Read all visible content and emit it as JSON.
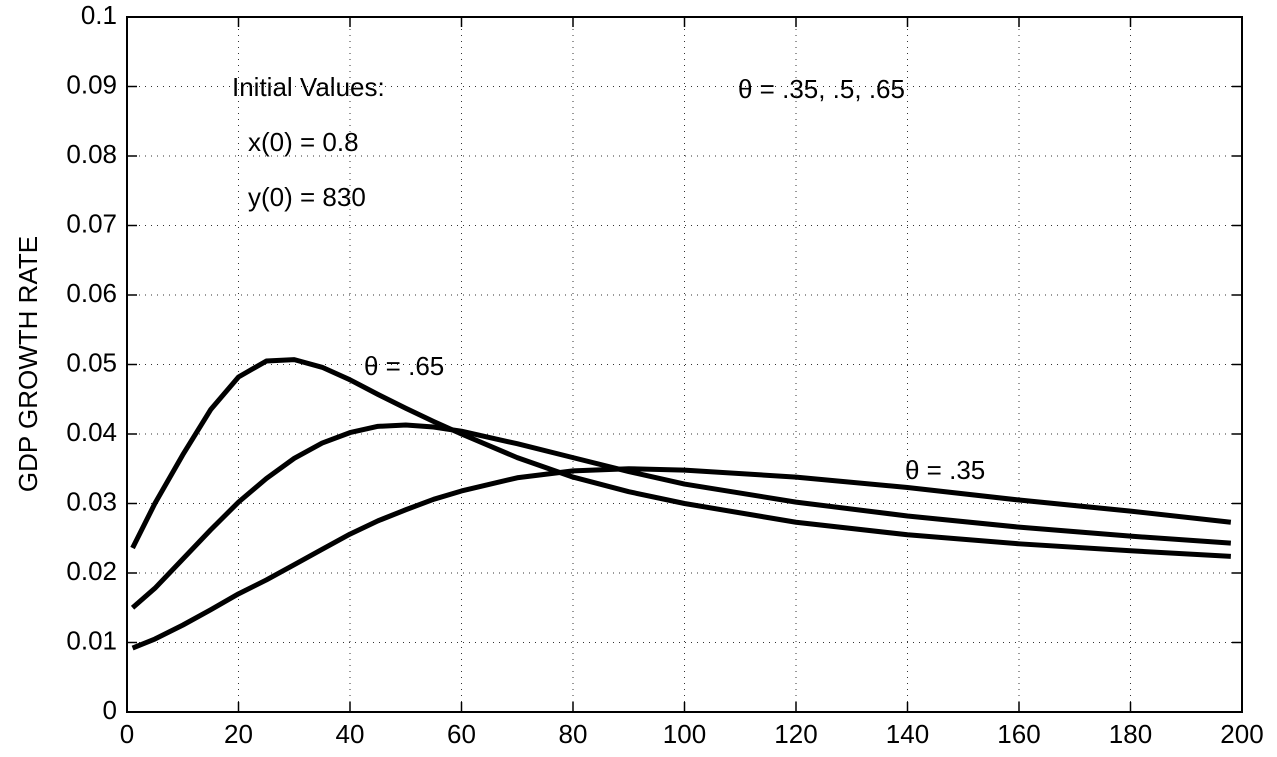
{
  "chart_data": {
    "type": "line",
    "y_label": "GDP GROWTH RATE",
    "annotations": [
      "Initial Values:",
      "x(0) = 0.8",
      "y(0) = 830",
      "θ = .35, .5, .65",
      "θ = .65",
      "θ = .35"
    ],
    "x": [
      1,
      5,
      10,
      15,
      20,
      25,
      30,
      35,
      40,
      45,
      50,
      55,
      60,
      70,
      80,
      90,
      100,
      120,
      140,
      160,
      180,
      198
    ],
    "series": [
      {
        "color": "#000000",
        "values": [
          0.0236,
          0.03,
          0.037,
          0.0435,
          0.0482,
          0.0505,
          0.0507,
          0.0496,
          0.0478,
          0.0457,
          0.0437,
          0.0418,
          0.04,
          0.0366,
          0.0338,
          0.0317,
          0.03,
          0.0273,
          0.0255,
          0.0242,
          0.0232,
          0.0224
        ]
      },
      {
        "color": "#000000",
        "values": [
          0.015,
          0.0178,
          0.022,
          0.0262,
          0.0302,
          0.0336,
          0.0365,
          0.0387,
          0.0402,
          0.0411,
          0.0413,
          0.041,
          0.0404,
          0.0386,
          0.0366,
          0.0346,
          0.0328,
          0.0302,
          0.0282,
          0.0266,
          0.0253,
          0.0243
        ]
      },
      {
        "color": "#000000",
        "values": [
          0.0092,
          0.0105,
          0.0125,
          0.0147,
          0.017,
          0.019,
          0.0212,
          0.0234,
          0.0256,
          0.0275,
          0.0291,
          0.0306,
          0.0318,
          0.0337,
          0.0347,
          0.035,
          0.0348,
          0.0338,
          0.0323,
          0.0305,
          0.0289,
          0.0273
        ]
      }
    ],
    "xlim": [
      0,
      200
    ],
    "xticks": [
      0,
      20,
      40,
      60,
      80,
      100,
      120,
      140,
      160,
      180,
      200
    ],
    "ylim": [
      0,
      0.1
    ],
    "yticks": [
      0,
      0.01,
      0.02,
      0.03,
      0.04,
      0.05,
      0.06,
      0.07,
      0.08,
      0.09,
      0.1
    ],
    "grid": true
  }
}
